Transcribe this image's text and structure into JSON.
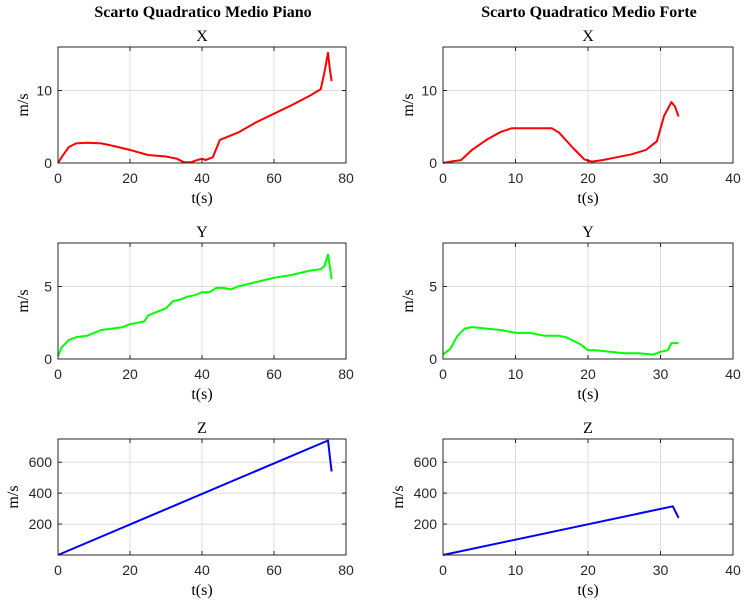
{
  "column_titles": [
    "Scarto Quadratico Medio Piano",
    "Scarto Quadratico Medio Forte"
  ],
  "chart_data": [
    {
      "type": "line",
      "title": "X",
      "xlabel": "t(s)",
      "ylabel": "m/s",
      "xlim": [
        0,
        80
      ],
      "ylim": [
        0,
        16
      ],
      "xticks": [
        0,
        20,
        40,
        60,
        80
      ],
      "yticks": [
        0,
        10
      ],
      "grid": true,
      "series": [
        {
          "color": "#ff0000",
          "x": [
            0,
            1,
            3,
            5,
            8,
            12,
            15,
            20,
            25,
            30,
            33,
            35,
            37,
            38,
            40,
            41,
            43,
            45,
            47,
            50,
            55,
            60,
            65,
            70,
            73,
            74,
            75,
            75.5,
            76
          ],
          "y": [
            0,
            0.8,
            2.2,
            2.7,
            2.8,
            2.7,
            2.4,
            1.8,
            1.1,
            0.9,
            0.6,
            0.1,
            0.1,
            0.3,
            0.6,
            0.4,
            0.8,
            3.2,
            3.6,
            4.2,
            5.6,
            6.8,
            8.0,
            9.3,
            10.2,
            12.5,
            15.2,
            13.0,
            11.3
          ]
        }
      ]
    },
    {
      "type": "line",
      "title": "X",
      "xlabel": "t(s)",
      "ylabel": "m/s",
      "xlim": [
        0,
        40
      ],
      "ylim": [
        0,
        16
      ],
      "xticks": [
        0,
        10,
        20,
        30,
        40
      ],
      "yticks": [
        0,
        10
      ],
      "grid": true,
      "series": [
        {
          "color": "#ff0000",
          "x": [
            0,
            1,
            2.5,
            4,
            6,
            8,
            9.5,
            11,
            13,
            15,
            16,
            18,
            19.5,
            20.5,
            22,
            24,
            26,
            28,
            29.5,
            30.5,
            31.5,
            32,
            32.5
          ],
          "y": [
            0,
            0.2,
            0.4,
            1.8,
            3.2,
            4.3,
            4.8,
            4.8,
            4.8,
            4.8,
            4.2,
            2.0,
            0.5,
            0.2,
            0.4,
            0.8,
            1.2,
            1.8,
            3.0,
            6.5,
            8.4,
            7.8,
            6.4
          ]
        }
      ]
    },
    {
      "type": "line",
      "title": "Y",
      "xlabel": "t(s)",
      "ylabel": "m/s",
      "xlim": [
        0,
        80
      ],
      "ylim": [
        0,
        8
      ],
      "xticks": [
        0,
        20,
        40,
        60,
        80
      ],
      "yticks": [
        0,
        5
      ],
      "grid": true,
      "series": [
        {
          "color": "#00ff00",
          "x": [
            0,
            1,
            3,
            5,
            8,
            10,
            12,
            15,
            18,
            20,
            22,
            24,
            25,
            27,
            30,
            32,
            34,
            36,
            38,
            40,
            42,
            44,
            46,
            48,
            50,
            55,
            60,
            65,
            70,
            73,
            74,
            75,
            75.5,
            76
          ],
          "y": [
            0.2,
            0.8,
            1.3,
            1.5,
            1.6,
            1.8,
            2.0,
            2.1,
            2.2,
            2.4,
            2.5,
            2.6,
            3.0,
            3.2,
            3.5,
            4.0,
            4.1,
            4.3,
            4.4,
            4.6,
            4.6,
            4.9,
            4.9,
            4.8,
            5.0,
            5.3,
            5.6,
            5.8,
            6.1,
            6.2,
            6.4,
            7.2,
            6.4,
            5.5
          ]
        }
      ]
    },
    {
      "type": "line",
      "title": "Y",
      "xlabel": "t(s)",
      "ylabel": "m/s",
      "xlim": [
        0,
        40
      ],
      "ylim": [
        0,
        8
      ],
      "xticks": [
        0,
        10,
        20,
        30,
        40
      ],
      "yticks": [
        0,
        5
      ],
      "grid": true,
      "series": [
        {
          "color": "#00ff00",
          "x": [
            0,
            1,
            2,
            3,
            4,
            6,
            8,
            10,
            12,
            14,
            16,
            17,
            19,
            20,
            21,
            23,
            25,
            27,
            29,
            30,
            31,
            31.5,
            32,
            32.5
          ],
          "y": [
            0.3,
            0.7,
            1.6,
            2.1,
            2.2,
            2.1,
            2.0,
            1.8,
            1.8,
            1.6,
            1.6,
            1.5,
            1.0,
            0.6,
            0.6,
            0.5,
            0.4,
            0.4,
            0.3,
            0.5,
            0.6,
            1.1,
            1.1,
            1.1
          ]
        }
      ]
    },
    {
      "type": "line",
      "title": "Z",
      "xlabel": "t(s)",
      "ylabel": "m/s",
      "xlim": [
        0,
        80
      ],
      "ylim": [
        0,
        750
      ],
      "xticks": [
        0,
        20,
        40,
        60,
        80
      ],
      "yticks": [
        200,
        400,
        600
      ],
      "grid": true,
      "series": [
        {
          "color": "#0000ff",
          "x": [
            0,
            75,
            76
          ],
          "y": [
            0,
            740,
            540
          ]
        }
      ]
    },
    {
      "type": "line",
      "title": "Z",
      "xlabel": "t(s)",
      "ylabel": "m/s",
      "xlim": [
        0,
        40
      ],
      "ylim": [
        0,
        750
      ],
      "xticks": [
        0,
        10,
        20,
        30,
        40
      ],
      "yticks": [
        200,
        400,
        600
      ],
      "grid": true,
      "series": [
        {
          "color": "#0000ff",
          "x": [
            0,
            31.7,
            32.5
          ],
          "y": [
            0,
            315,
            240
          ]
        }
      ]
    }
  ]
}
